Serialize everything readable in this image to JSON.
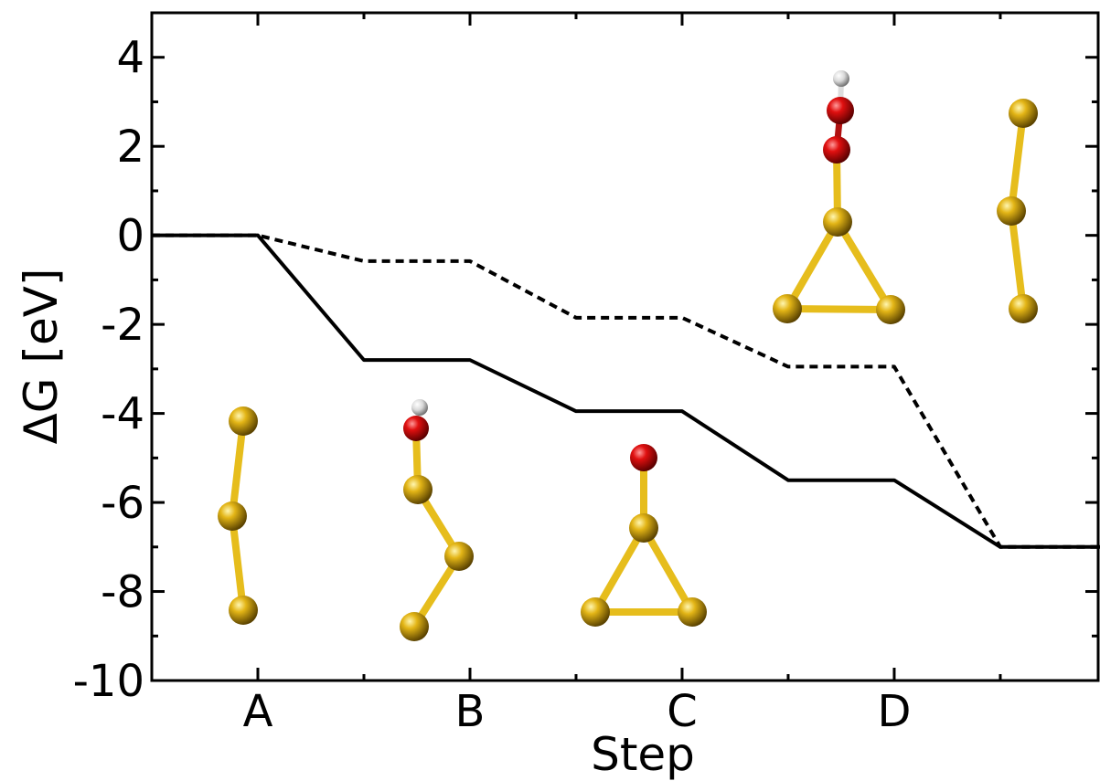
{
  "chart_data": {
    "type": "line",
    "y_label": "ΔG [eV]",
    "x_label": "Step",
    "x": [
      0,
      1,
      2,
      3,
      4,
      5,
      6,
      7,
      8,
      8.94
    ],
    "series": [
      {
        "color": "#000000",
        "dashed": false,
        "values": [
          0,
          0,
          -2.8,
          -2.8,
          -3.95,
          -3.95,
          -5.5,
          -5.5,
          -7,
          -7
        ]
      },
      {
        "color": "#000000",
        "dashed": true,
        "values": [
          0,
          0,
          -0.58,
          -0.58,
          -1.85,
          -1.85,
          -2.95,
          -2.95,
          -7,
          -7
        ]
      }
    ],
    "xlim": [
      0,
      8.94
    ],
    "xticks": [
      {
        "value": 1,
        "label": "A"
      },
      {
        "value": 3,
        "label": "B"
      },
      {
        "value": 5,
        "label": "C"
      },
      {
        "value": 7,
        "label": "D"
      }
    ],
    "xminorticks": [
      2,
      4,
      6,
      8
    ],
    "ylim": [
      -10,
      5
    ],
    "yticks": [
      -10,
      -8,
      -6,
      -4,
      -2,
      0,
      2,
      4
    ],
    "yminorticks": [
      -9,
      -7,
      -5,
      -3,
      -1,
      1,
      3
    ],
    "grid": false
  }
}
